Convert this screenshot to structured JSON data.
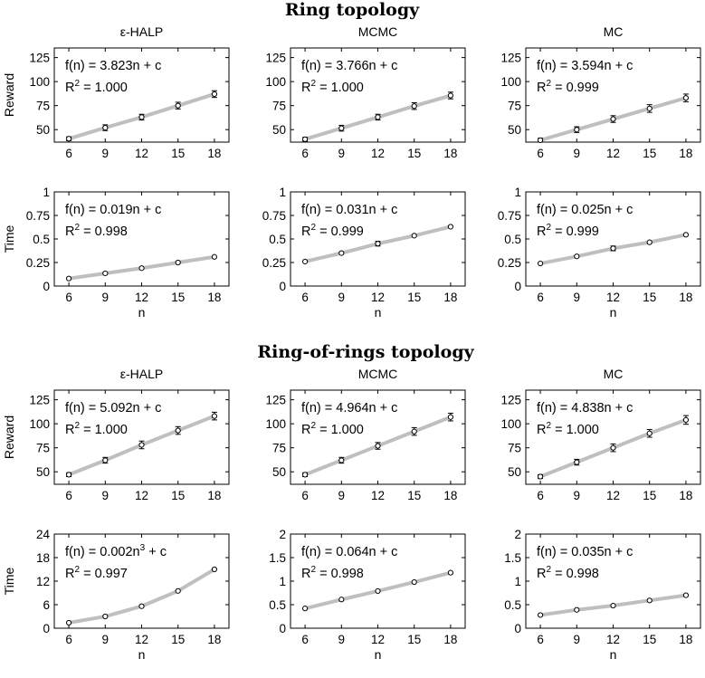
{
  "sections": [
    "Ring topology",
    "Ring-of-rings topology"
  ],
  "x_axis_label": "n",
  "chart_data": [
    {
      "type": "line",
      "section": 0,
      "title": "ε-HALP",
      "ylabel": "Reward",
      "xlabel": "",
      "x": [
        6,
        9,
        12,
        15,
        18
      ],
      "yticks": [
        50,
        75,
        100,
        125
      ],
      "ylim": [
        37,
        135
      ],
      "values": [
        40.5,
        52,
        63,
        75,
        87
      ],
      "errors": [
        2,
        3,
        3,
        3.5,
        3.5
      ],
      "fit_label": "f(n) = 3.823n + c",
      "r2_value": " = 1.000"
    },
    {
      "type": "line",
      "section": 0,
      "title": "MCMC",
      "ylabel": "",
      "xlabel": "",
      "x": [
        6,
        9,
        12,
        15,
        18
      ],
      "yticks": [
        50,
        75,
        100,
        125
      ],
      "ylim": [
        37,
        135
      ],
      "values": [
        40,
        51.5,
        63,
        74.5,
        85.5
      ],
      "errors": [
        2,
        3,
        3,
        3.5,
        3.5
      ],
      "fit_label": "f(n) = 3.766n + c",
      "r2_value": " = 1.000"
    },
    {
      "type": "line",
      "section": 0,
      "title": "MC",
      "ylabel": "",
      "xlabel": "",
      "x": [
        6,
        9,
        12,
        15,
        18
      ],
      "yticks": [
        50,
        75,
        100,
        125
      ],
      "ylim": [
        37,
        135
      ],
      "values": [
        39,
        50,
        61,
        72,
        83
      ],
      "errors": [
        2,
        3,
        3.5,
        4,
        4
      ],
      "fit_label": "f(n) = 3.594n + c",
      "r2_value": " = 0.999"
    },
    {
      "type": "line",
      "section": 0,
      "title": "",
      "ylabel": "Time",
      "xlabel": "n",
      "x": [
        6,
        9,
        12,
        15,
        18
      ],
      "yticks": [
        0,
        0.25,
        0.5,
        0.75,
        1
      ],
      "yticklabels": [
        "0",
        "0.25",
        "0.5",
        "0.75",
        "1"
      ],
      "ylim": [
        0,
        1
      ],
      "values": [
        0.08,
        0.135,
        0.19,
        0.25,
        0.31
      ],
      "errors": [
        0,
        0,
        0,
        0,
        0
      ],
      "fit_label": "f(n) = 0.019n + c",
      "r2_value": " = 0.998"
    },
    {
      "type": "line",
      "section": 0,
      "title": "",
      "ylabel": "",
      "xlabel": "n",
      "x": [
        6,
        9,
        12,
        15,
        18
      ],
      "yticks": [
        0,
        0.25,
        0.5,
        0.75,
        1
      ],
      "yticklabels": [
        "0",
        "0.25",
        "0.5",
        "0.75",
        "1"
      ],
      "ylim": [
        0,
        1
      ],
      "values": [
        0.26,
        0.35,
        0.45,
        0.535,
        0.63
      ],
      "errors": [
        0,
        0,
        0.025,
        0,
        0
      ],
      "fit_label": "f(n) = 0.031n + c",
      "r2_value": " = 0.999"
    },
    {
      "type": "line",
      "section": 0,
      "title": "",
      "ylabel": "",
      "xlabel": "n",
      "x": [
        6,
        9,
        12,
        15,
        18
      ],
      "yticks": [
        0,
        0.25,
        0.5,
        0.75,
        1
      ],
      "yticklabels": [
        "0",
        "0.25",
        "0.5",
        "0.75",
        "1"
      ],
      "ylim": [
        0,
        1
      ],
      "values": [
        0.24,
        0.315,
        0.4,
        0.465,
        0.545
      ],
      "errors": [
        0,
        0,
        0.025,
        0,
        0
      ],
      "fit_label": "f(n) = 0.025n + c",
      "r2_value": " = 0.999"
    },
    {
      "type": "line",
      "section": 1,
      "title": "ε-HALP",
      "ylabel": "Reward",
      "xlabel": "",
      "x": [
        6,
        9,
        12,
        15,
        18
      ],
      "yticks": [
        50,
        75,
        100,
        125
      ],
      "ylim": [
        37,
        135
      ],
      "values": [
        47,
        62,
        78,
        93,
        108
      ],
      "errors": [
        2,
        3,
        4,
        4,
        4
      ],
      "fit_label": "f(n) = 5.092n + c",
      "r2_value": " = 1.000"
    },
    {
      "type": "line",
      "section": 1,
      "title": "MCMC",
      "ylabel": "",
      "xlabel": "",
      "x": [
        6,
        9,
        12,
        15,
        18
      ],
      "yticks": [
        50,
        75,
        100,
        125
      ],
      "ylim": [
        37,
        135
      ],
      "values": [
        47,
        62,
        77,
        92,
        107
      ],
      "errors": [
        2,
        3,
        3.5,
        4,
        4
      ],
      "fit_label": "f(n) = 4.964n + c",
      "r2_value": " = 1.000"
    },
    {
      "type": "line",
      "section": 1,
      "title": "MC",
      "ylabel": "",
      "xlabel": "",
      "x": [
        6,
        9,
        12,
        15,
        18
      ],
      "yticks": [
        50,
        75,
        100,
        125
      ],
      "ylim": [
        37,
        135
      ],
      "values": [
        45,
        60,
        75,
        90,
        104
      ],
      "errors": [
        2,
        3,
        4,
        4,
        4.5
      ],
      "fit_label": "f(n) = 4.838n + c",
      "r2_value": " = 1.000"
    },
    {
      "type": "line",
      "section": 1,
      "title": "",
      "ylabel": "Time",
      "xlabel": "n",
      "x": [
        6,
        9,
        12,
        15,
        18
      ],
      "yticks": [
        0,
        6,
        12,
        18,
        24
      ],
      "ylim": [
        0,
        24
      ],
      "values": [
        1.4,
        3,
        5.6,
        9.5,
        15
      ],
      "errors": [
        0,
        0,
        0,
        0,
        0
      ],
      "fit_label": "f(n) = 0.002n + c",
      "fit_exponent": "3",
      "r2_value": " = 0.997"
    },
    {
      "type": "line",
      "section": 1,
      "title": "",
      "ylabel": "",
      "xlabel": "n",
      "x": [
        6,
        9,
        12,
        15,
        18
      ],
      "yticks": [
        0,
        0.5,
        1,
        1.5,
        2
      ],
      "yticklabels": [
        "0",
        "0.5",
        "1",
        "1.5",
        "2"
      ],
      "ylim": [
        0,
        2
      ],
      "values": [
        0.42,
        0.61,
        0.79,
        0.98,
        1.18
      ],
      "errors": [
        0,
        0,
        0,
        0,
        0
      ],
      "fit_label": "f(n) = 0.064n + c",
      "r2_value": " = 0.998"
    },
    {
      "type": "line",
      "section": 1,
      "title": "",
      "ylabel": "",
      "xlabel": "n",
      "x": [
        6,
        9,
        12,
        15,
        18
      ],
      "yticks": [
        0,
        0.5,
        1,
        1.5,
        2
      ],
      "yticklabels": [
        "0",
        "0.5",
        "1",
        "1.5",
        "2"
      ],
      "ylim": [
        0,
        2
      ],
      "values": [
        0.28,
        0.39,
        0.48,
        0.59,
        0.7
      ],
      "errors": [
        0,
        0,
        0,
        0,
        0
      ],
      "fit_label": "f(n) = 0.035n + c",
      "r2_value": " = 0.998"
    }
  ]
}
